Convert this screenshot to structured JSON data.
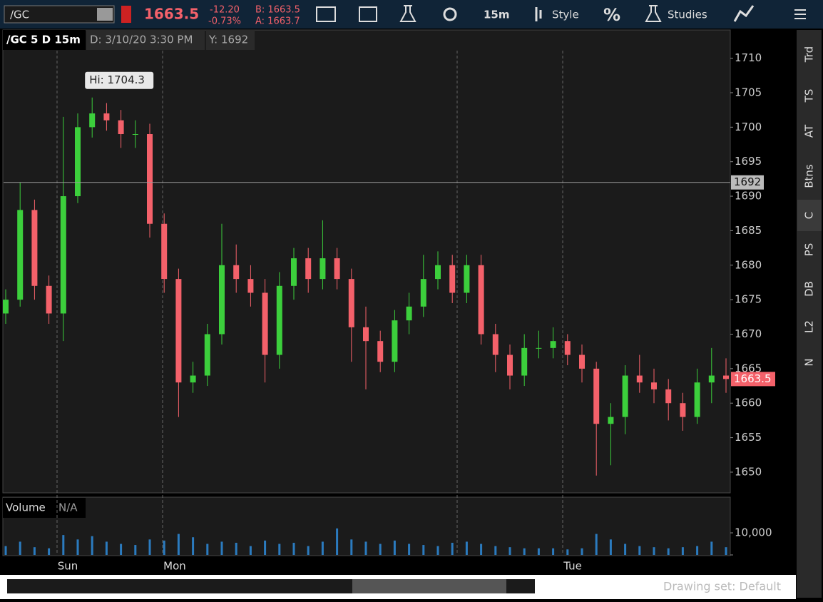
{
  "toolbar": {
    "symbol": "/GC",
    "last": "1663.5",
    "change": "-12.20",
    "change_pct": "-0.73%",
    "bid": "B: 1663.5",
    "ask": "A: 1663.7",
    "interval": "15m",
    "style": "Style",
    "percent": "%",
    "studies": "Studies"
  },
  "chart_header": {
    "title": "/GC 5 D 15m",
    "date": "D: 3/10/20 3:30 PM",
    "y": "Y: 1692"
  },
  "chart_data": {
    "type": "candlestick",
    "open": [
      1673,
      1675,
      1688,
      1677,
      1673,
      1690,
      1700,
      1702,
      1701,
      1699,
      1699,
      1686,
      1678,
      1663,
      1664,
      1670,
      1680,
      1678,
      1676,
      1667,
      1677,
      1681,
      1678,
      1681,
      1678,
      1671,
      1669,
      1666,
      1672,
      1674,
      1678,
      1680,
      1676,
      1680,
      1670,
      1667,
      1664,
      1668,
      1668,
      1669,
      1667,
      1665,
      1657,
      1658,
      1664,
      1663,
      1662,
      1660,
      1658,
      1663,
      1664
    ],
    "high": [
      1676.5,
      1692,
      1689.5,
      1678.5,
      1701.5,
      1702,
      1704.3,
      1703.5,
      1702.5,
      1701,
      1700.5,
      1687.5,
      1679.5,
      1666,
      1671.5,
      1686,
      1683,
      1680,
      1678,
      1679,
      1682.5,
      1682.5,
      1686.5,
      1682.5,
      1679.5,
      1674,
      1670.5,
      1673.5,
      1676,
      1681.5,
      1682,
      1681.5,
      1681.5,
      1681.5,
      1671.5,
      1668.5,
      1670,
      1670.5,
      1671,
      1670,
      1668.5,
      1666,
      1660,
      1665.5,
      1667,
      1665,
      1663.5,
      1661.5,
      1665,
      1668,
      1666.5
    ],
    "low": [
      1671.5,
      1674,
      1675,
      1671.5,
      1669,
      1689,
      1698.5,
      1699.5,
      1697,
      1697,
      1684,
      1676,
      1658,
      1661.5,
      1662.5,
      1668.5,
      1676,
      1674,
      1663,
      1665,
      1675,
      1676,
      1676.5,
      1676.5,
      1666,
      1662,
      1664.5,
      1664.5,
      1670,
      1672.5,
      1676.5,
      1674.5,
      1674.5,
      1668.5,
      1664.5,
      1662,
      1662.5,
      1666.5,
      1666.5,
      1665.5,
      1663,
      1649.5,
      1651,
      1655.5,
      1661.5,
      1660,
      1657.5,
      1656,
      1657,
      1660,
      1661.5
    ],
    "close": [
      1675,
      1688,
      1677,
      1673,
      1690,
      1700,
      1702,
      1701,
      1699,
      1699,
      1686,
      1678,
      1663,
      1664,
      1670,
      1680,
      1678,
      1676,
      1667,
      1677,
      1681,
      1678,
      1681,
      1678,
      1671,
      1669,
      1666,
      1672,
      1674,
      1678,
      1680,
      1676,
      1680,
      1670,
      1667,
      1664,
      1668,
      1668,
      1669,
      1667,
      1665,
      1657,
      1658,
      1664,
      1663,
      1662,
      1660,
      1658,
      1663,
      1664,
      1663.5
    ],
    "up_color": "#3ccf3c",
    "down_color": "#f4616a",
    "ylim": [
      1647.1,
      1711.2
    ],
    "yticks": [
      1650,
      1655,
      1660,
      1665,
      1670,
      1675,
      1680,
      1685,
      1690,
      1695,
      1700,
      1705,
      1710
    ],
    "high_label": "Hi: 1704.3",
    "crosshair_y": 1692,
    "day_labels": [
      "Sun",
      "Mon",
      "Tue"
    ],
    "volume": {
      "title": "Volume",
      "value": "N/A",
      "color": "#2b7bbf",
      "values": [
        4000,
        6000,
        3500,
        3000,
        9000,
        7000,
        8500,
        6000,
        5000,
        4500,
        7000,
        6500,
        9500,
        8000,
        5000,
        6000,
        5500,
        4000,
        6500,
        5000,
        5500,
        4000,
        6000,
        12000,
        7000,
        6000,
        5000,
        6500,
        5000,
        4500,
        4000,
        5500,
        6000,
        5000,
        4000,
        3500,
        3000,
        3000,
        3000,
        2500,
        3000,
        9500,
        7000,
        5000,
        4000,
        3500,
        3000,
        3500,
        4000,
        6000,
        3500
      ],
      "ylim": [
        0,
        15500
      ],
      "yticks": [
        {
          "value": 10000,
          "label": "10,000"
        },
        0
      ]
    }
  },
  "sidebar": [
    "Trd",
    "TS",
    "AT",
    "Btns",
    "C",
    "PS",
    "DB",
    "L2",
    "N"
  ],
  "footer": {
    "drawing_set": "Drawing set: Default"
  }
}
